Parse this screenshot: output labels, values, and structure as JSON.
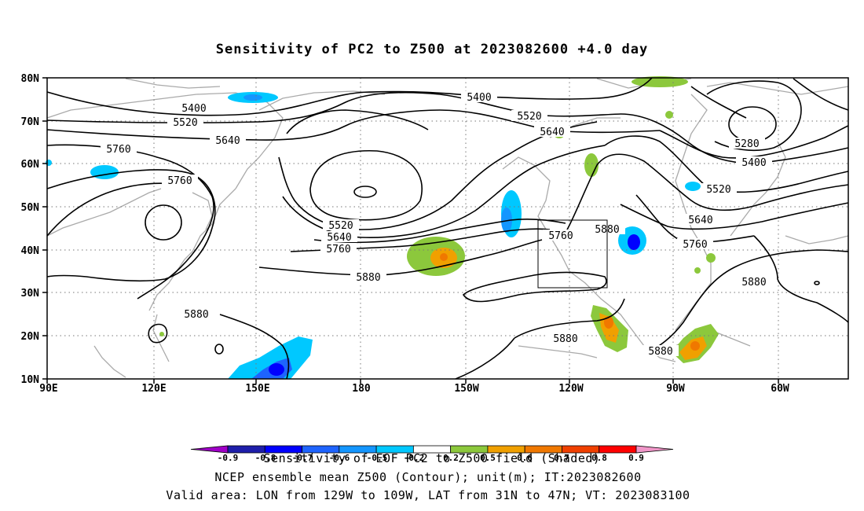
{
  "title": "Sensitivity of PC2 to Z500 at 2023082600 +4.0 day",
  "map": {
    "x_ticks": [
      "90E",
      "120E",
      "150E",
      "180",
      "150W",
      "120W",
      "90W",
      "60W"
    ],
    "y_ticks": [
      "80N",
      "70N",
      "60N",
      "50N",
      "40N",
      "30N",
      "20N",
      "10N"
    ],
    "grid": "dotted",
    "coastline_color": "#aaaaaa",
    "contour_labels": [
      "5400",
      "5520",
      "5640",
      "5760",
      "5760",
      "5400",
      "5520",
      "5640",
      "5280",
      "5400",
      "5520",
      "5640",
      "5760",
      "5880",
      "5760",
      "5880",
      "5880",
      "5880",
      "5880",
      "5880"
    ],
    "valid_box": {
      "lon_from": "129W",
      "lon_to": "109W",
      "lat_from": "31N",
      "lat_to": "47N"
    }
  },
  "colorbar": {
    "labels": [
      "-0.9",
      "-0.8",
      "-0.7",
      "-0.6",
      "-0.5",
      "-0.2",
      "0.2",
      "0.5",
      "0.6",
      "0.7",
      "0.8",
      "0.9"
    ],
    "colors": [
      "#a000c8",
      "#1e1eaa",
      "#0000ff",
      "#1e64ff",
      "#1496ff",
      "#00c8ff",
      "#ffffff",
      "#8cc83c",
      "#f0a000",
      "#f07800",
      "#f04000",
      "#ff0000",
      "#f096c8"
    ]
  },
  "footer": {
    "line1": "Sensitivity of EOF PC2 to Z500 field (Shaded)",
    "line2": "NCEP ensemble mean Z500 (Contour); unit(m); IT:2023082600",
    "line3": "Valid area: LON from 129W to 109W, LAT from 31N to 47N; VT: 2023083100"
  }
}
